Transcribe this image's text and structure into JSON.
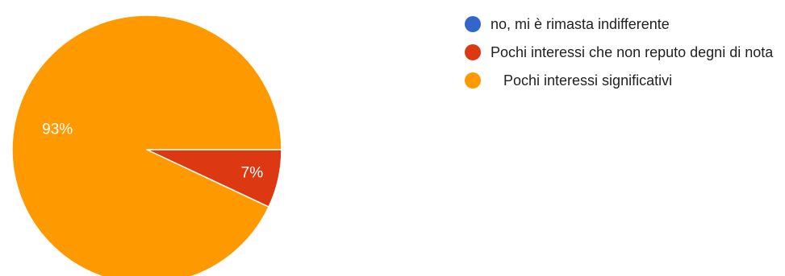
{
  "chart_data": {
    "type": "pie",
    "title": "",
    "slices": [
      {
        "label": "no, mi è rimasta indifferente",
        "value": 0,
        "color": "#3366cc"
      },
      {
        "label": "Pochi interessi che non reputo degni di nota",
        "value": 7,
        "color": "#dc3912"
      },
      {
        "label": "Pochi interessi significativi",
        "value": 93,
        "color": "#ff9900"
      }
    ],
    "data_labels": [
      "",
      "7%",
      "93%"
    ],
    "legend_position": "right"
  }
}
